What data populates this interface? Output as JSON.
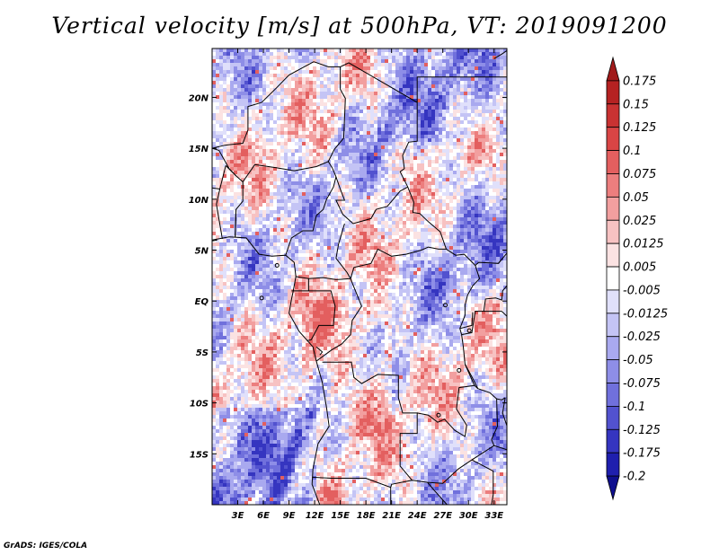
{
  "title": "Vertical velocity [m/s] at 500hPa, VT: 2019091200",
  "credit": "GrADS: IGES/COLA",
  "map": {
    "lon_range": [
      0,
      34.5
    ],
    "lat_range": [
      -20,
      24.8
    ],
    "lon_ticks": [
      {
        "value": 3,
        "label": "3E"
      },
      {
        "value": 6,
        "label": "6E"
      },
      {
        "value": 9,
        "label": "9E"
      },
      {
        "value": 12,
        "label": "12E"
      },
      {
        "value": 15,
        "label": "15E"
      },
      {
        "value": 18,
        "label": "18E"
      },
      {
        "value": 21,
        "label": "21E"
      },
      {
        "value": 24,
        "label": "24E"
      },
      {
        "value": 27,
        "label": "27E"
      },
      {
        "value": 30,
        "label": "30E"
      },
      {
        "value": 33,
        "label": "33E"
      }
    ],
    "lat_ticks": [
      {
        "value": 20,
        "label": "20N"
      },
      {
        "value": 15,
        "label": "15N"
      },
      {
        "value": 10,
        "label": "10N"
      },
      {
        "value": 5,
        "label": "5N"
      },
      {
        "value": 0,
        "label": "EQ"
      },
      {
        "value": -5,
        "label": "5S"
      },
      {
        "value": -10,
        "label": "10S"
      },
      {
        "value": -15,
        "label": "15S"
      }
    ]
  },
  "colorbar": {
    "levels": [
      "0.175",
      "0.15",
      "0.125",
      "0.1",
      "0.075",
      "0.05",
      "0.025",
      "0.0125",
      "0.005",
      "-0.005",
      "-0.0125",
      "-0.025",
      "-0.05",
      "-0.075",
      "-0.1",
      "-0.125",
      "-0.175",
      "-0.2"
    ],
    "colors": [
      "#a11a1a",
      "#b52222",
      "#c93232",
      "#d94545",
      "#e35f5f",
      "#ec7e7e",
      "#f29f9f",
      "#f7c2c2",
      "#fbe2e2",
      "#ffffff",
      "#e0e0fb",
      "#c4c4f5",
      "#a9a9ef",
      "#8e8ee7",
      "#7070dc",
      "#5252cf",
      "#3535c0",
      "#1f1fae",
      "#0f0f8e"
    ]
  }
}
